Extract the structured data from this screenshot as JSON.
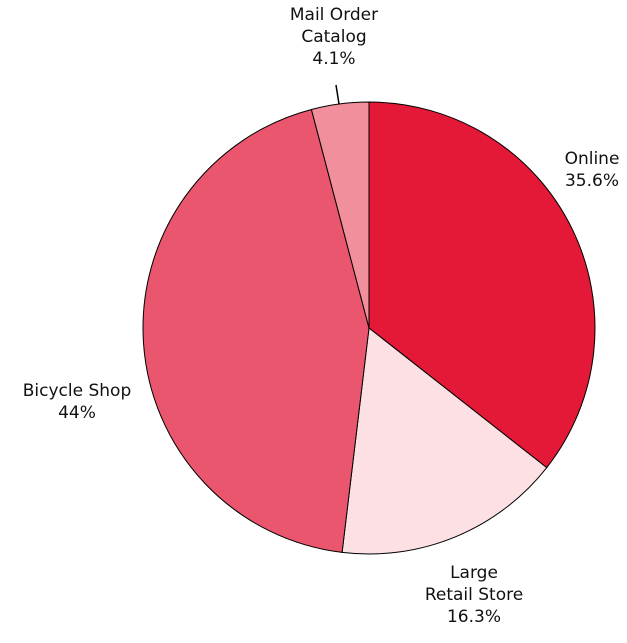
{
  "chart_data": {
    "type": "pie",
    "categories": [
      "Online",
      "Large\nRetail Store",
      "Bicycle Shop",
      "Mail Order\nCatalog"
    ],
    "values": [
      35.6,
      16.3,
      44,
      4.1
    ],
    "value_labels": [
      "35.6%",
      "16.3%",
      "44%",
      "4.1%"
    ],
    "colors": [
      "#e31937",
      "#fde0e4",
      "#e9566e",
      "#f28f9c"
    ]
  }
}
